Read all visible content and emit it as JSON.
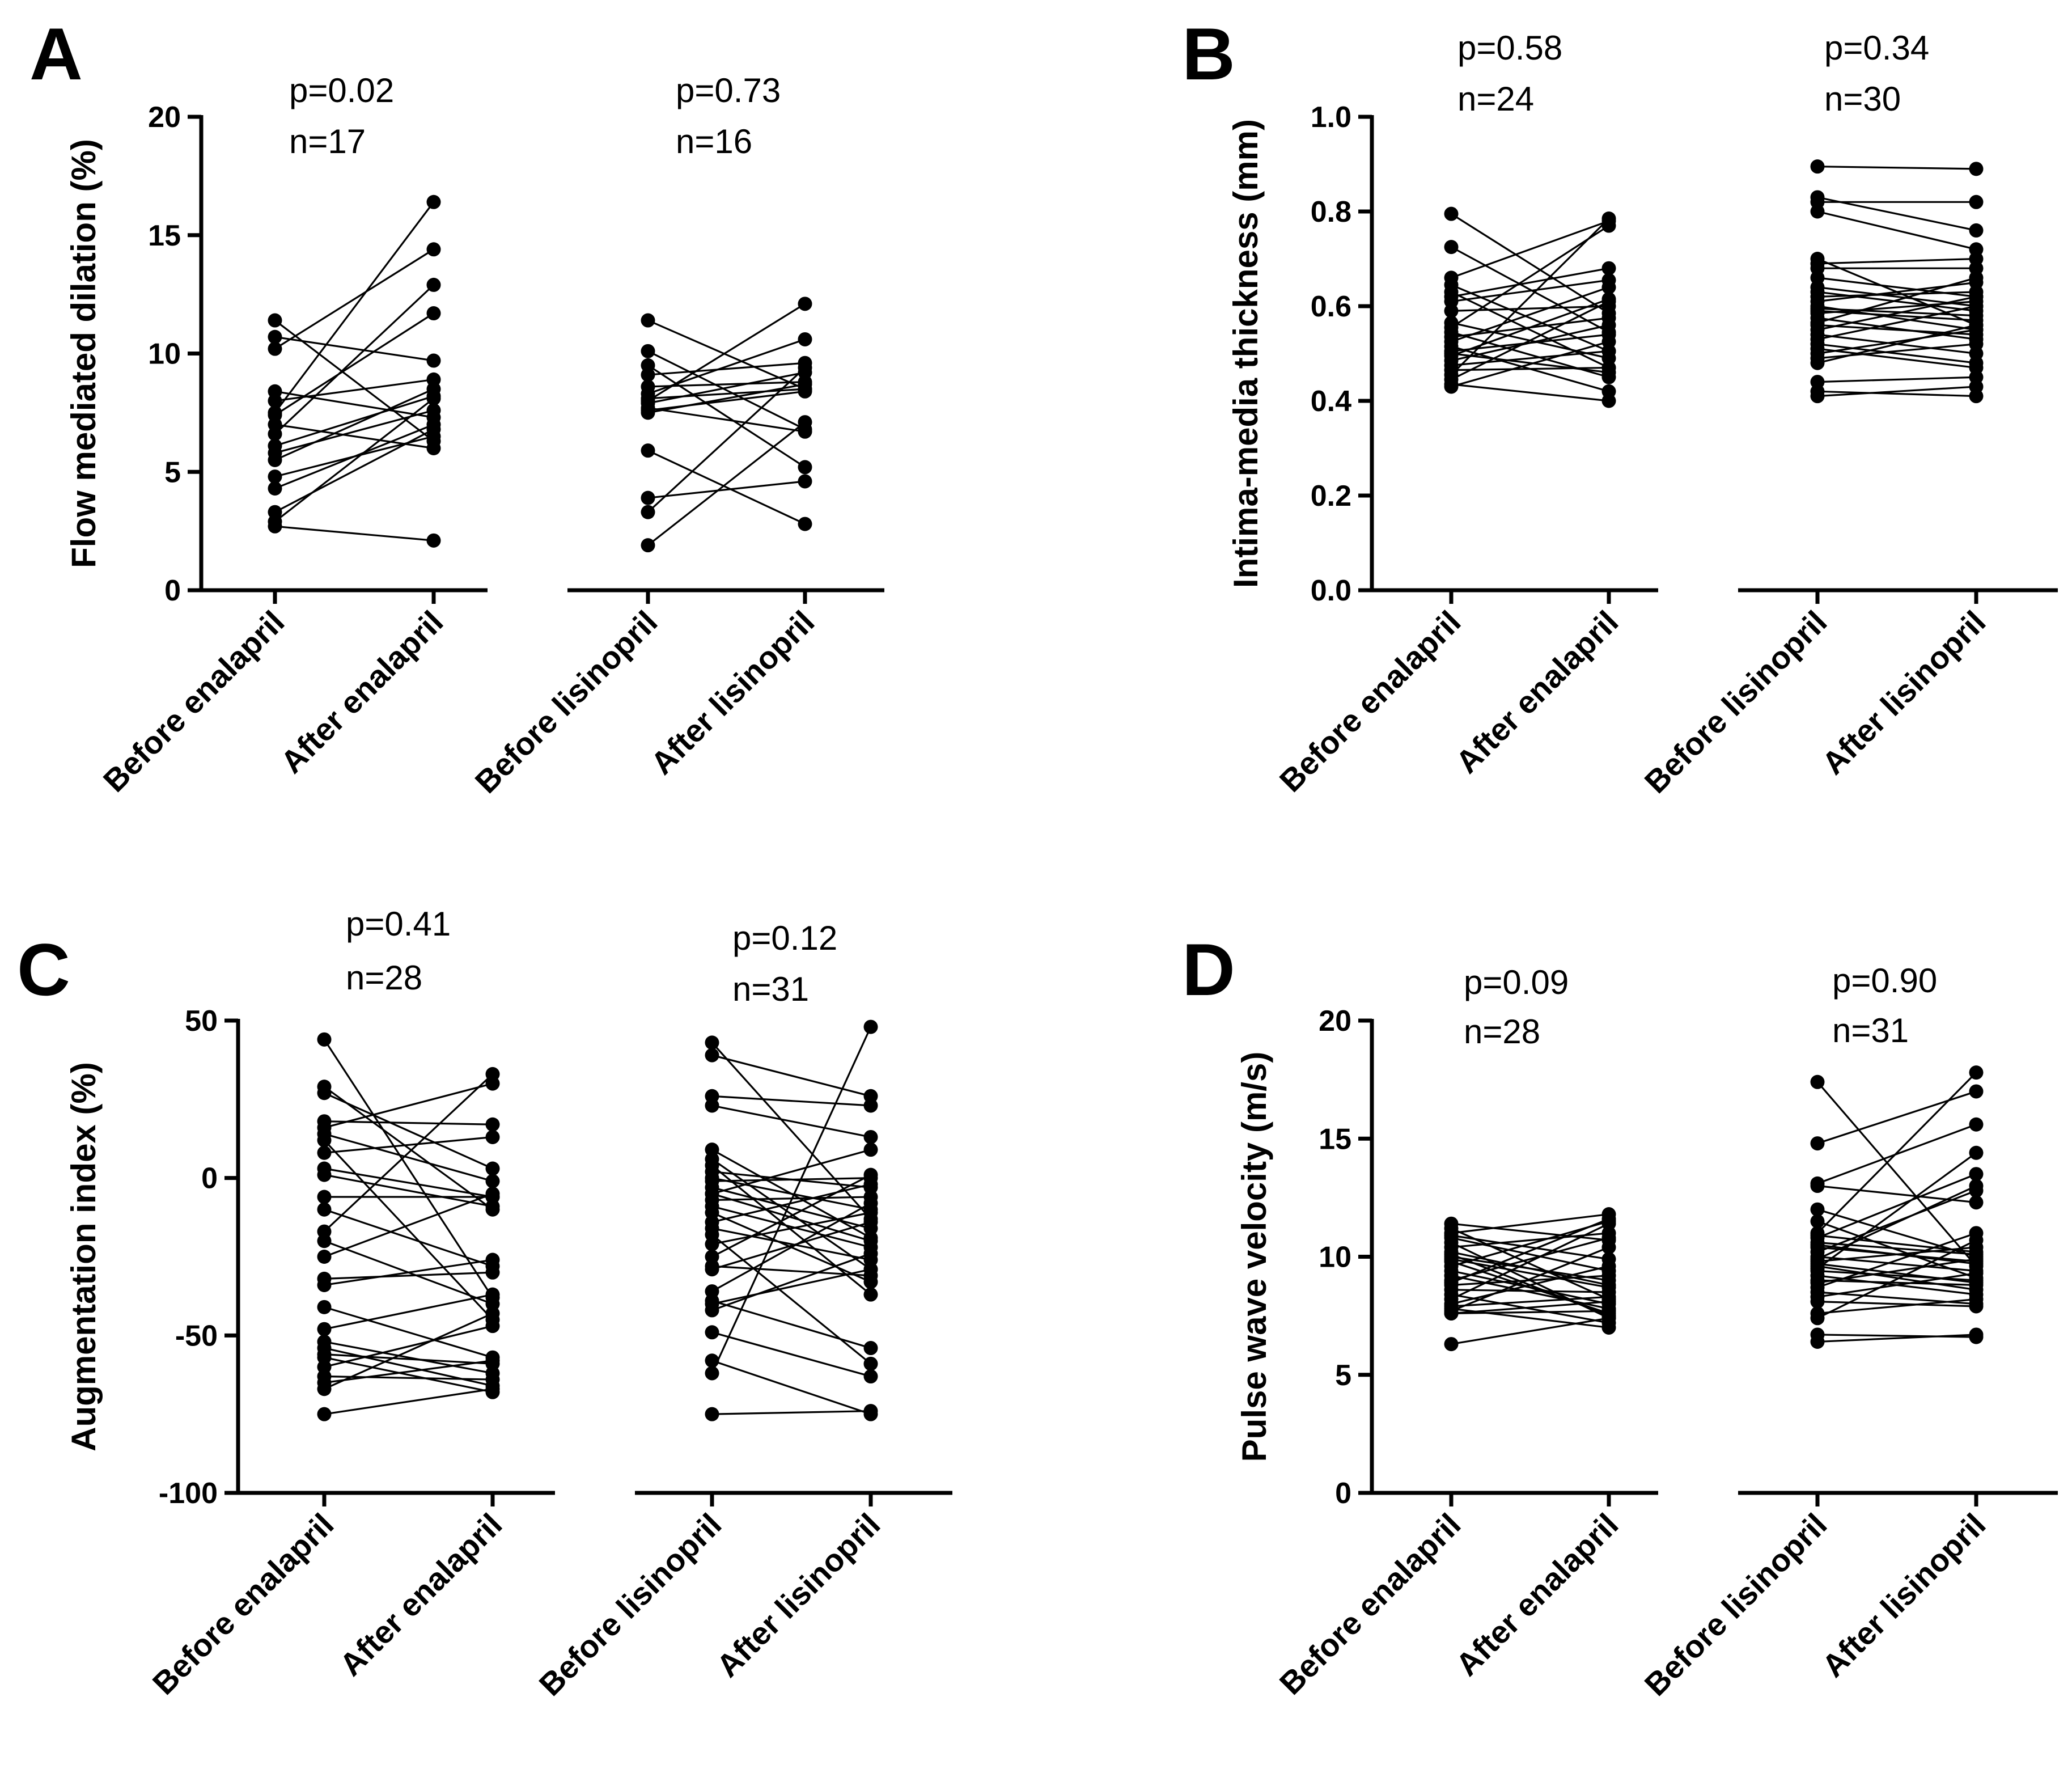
{
  "chart_data": [
    {
      "panel": "A",
      "type": "scatter",
      "ylabel": "Flow mediated dilation (%)",
      "ylim": [
        0,
        20
      ],
      "yticks": [
        "0",
        "5",
        "10",
        "15",
        "20"
      ],
      "categories": [
        "Before enalapril",
        "After enalapril",
        "Before lisinopril",
        "After lisinopril"
      ],
      "groups": [
        {
          "drug": "enalapril",
          "p_text": "p=0.02",
          "n_text": "n=17",
          "pairs": [
            [
              11.4,
              6.3
            ],
            [
              10.7,
              9.7
            ],
            [
              10.2,
              14.4
            ],
            [
              8.4,
              7.3
            ],
            [
              8.0,
              8.9
            ],
            [
              7.5,
              16.4
            ],
            [
              7.4,
              11.7
            ],
            [
              7.0,
              6.0
            ],
            [
              6.6,
              12.9
            ],
            [
              6.1,
              8.2
            ],
            [
              5.8,
              7.6
            ],
            [
              5.5,
              8.5
            ],
            [
              4.8,
              6.5
            ],
            [
              4.3,
              7.0
            ],
            [
              3.3,
              6.8
            ],
            [
              2.9,
              8.1
            ],
            [
              2.7,
              2.1
            ]
          ]
        },
        {
          "drug": "lisinopril",
          "p_text": "p=0.73",
          "n_text": "n=16",
          "pairs": [
            [
              11.4,
              8.5
            ],
            [
              10.1,
              6.8
            ],
            [
              9.5,
              5.2
            ],
            [
              9.1,
              9.6
            ],
            [
              8.6,
              8.8
            ],
            [
              8.3,
              10.6
            ],
            [
              8.1,
              8.5
            ],
            [
              8.0,
              12.1
            ],
            [
              7.9,
              9.2
            ],
            [
              7.7,
              6.7
            ],
            [
              7.5,
              8.7
            ],
            [
              5.9,
              2.8
            ],
            [
              3.9,
              4.6
            ],
            [
              3.3,
              9.4
            ],
            [
              1.9,
              7.1
            ],
            [
              7.6,
              8.4
            ]
          ]
        }
      ]
    },
    {
      "panel": "B",
      "type": "scatter",
      "ylabel": "Intima-media thickness (mm)",
      "ylim": [
        0,
        1.0
      ],
      "yticks": [
        "0.0",
        "0.2",
        "0.4",
        "0.6",
        "0.8",
        "1.0"
      ],
      "categories": [
        "Before enalapril",
        "After enalapril",
        "Before lisinopril",
        "After lisinopril"
      ],
      "groups": [
        {
          "drug": "enalapril",
          "p_text": "p=0.58",
          "n_text": "n=24",
          "pairs": [
            [
              0.795,
              0.585
            ],
            [
              0.725,
              0.545
            ],
            [
              0.66,
              0.78
            ],
            [
              0.645,
              0.505
            ],
            [
              0.63,
              0.47
            ],
            [
              0.62,
              0.68
            ],
            [
              0.61,
              0.655
            ],
            [
              0.59,
              0.6
            ],
            [
              0.565,
              0.49
            ],
            [
              0.555,
              0.77
            ],
            [
              0.545,
              0.45
            ],
            [
              0.535,
              0.575
            ],
            [
              0.525,
              0.64
            ],
            [
              0.515,
              0.42
            ],
            [
              0.505,
              0.54
            ],
            [
              0.495,
              0.615
            ],
            [
              0.485,
              0.56
            ],
            [
              0.475,
              0.505
            ],
            [
              0.465,
              0.47
            ],
            [
              0.455,
              0.785
            ],
            [
              0.445,
              0.61
            ],
            [
              0.435,
              0.4
            ],
            [
              0.43,
              0.525
            ],
            [
              0.5,
              0.46
            ]
          ]
        },
        {
          "drug": "lisinopril",
          "p_text": "p=0.34",
          "n_text": "n=30",
          "pairs": [
            [
              0.895,
              0.89
            ],
            [
              0.83,
              0.76
            ],
            [
              0.82,
              0.82
            ],
            [
              0.8,
              0.72
            ],
            [
              0.7,
              0.56
            ],
            [
              0.69,
              0.7
            ],
            [
              0.68,
              0.68
            ],
            [
              0.66,
              0.62
            ],
            [
              0.64,
              0.6
            ],
            [
              0.63,
              0.59
            ],
            [
              0.62,
              0.63
            ],
            [
              0.61,
              0.65
            ],
            [
              0.6,
              0.55
            ],
            [
              0.595,
              0.58
            ],
            [
              0.59,
              0.57
            ],
            [
              0.585,
              0.61
            ],
            [
              0.575,
              0.53
            ],
            [
              0.565,
              0.66
            ],
            [
              0.56,
              0.54
            ],
            [
              0.55,
              0.62
            ],
            [
              0.54,
              0.5
            ],
            [
              0.53,
              0.6
            ],
            [
              0.52,
              0.48
            ],
            [
              0.51,
              0.47
            ],
            [
              0.5,
              0.55
            ],
            [
              0.49,
              0.52
            ],
            [
              0.48,
              0.56
            ],
            [
              0.44,
              0.45
            ],
            [
              0.42,
              0.41
            ],
            [
              0.41,
              0.43
            ]
          ]
        }
      ]
    },
    {
      "panel": "C",
      "type": "scatter",
      "ylabel": "Augmentation index (%)",
      "ylim": [
        -100,
        50
      ],
      "yticks": [
        "-100",
        "-50",
        "0",
        "50"
      ],
      "categories": [
        "Before enalapril",
        "After enalapril",
        "Before lisinopril",
        "After lisinopril"
      ],
      "groups": [
        {
          "drug": "enalapril",
          "p_text": "p=0.41",
          "n_text": "n=28",
          "pairs": [
            [
              44,
              -38
            ],
            [
              29,
              -10
            ],
            [
              27,
              3
            ],
            [
              18,
              17
            ],
            [
              16,
              30
            ],
            [
              14,
              -1
            ],
            [
              12,
              -45
            ],
            [
              3,
              -6
            ],
            [
              1,
              -9
            ],
            [
              -6,
              -6
            ],
            [
              -10,
              -28
            ],
            [
              -17,
              33
            ],
            [
              -20,
              -40
            ],
            [
              -32,
              -30
            ],
            [
              -34,
              -26
            ],
            [
              -41,
              -57
            ],
            [
              -48,
              -37
            ],
            [
              -52,
              -62
            ],
            [
              -54,
              -66
            ],
            [
              -56,
              -59
            ],
            [
              -57,
              -68
            ],
            [
              -60,
              -47
            ],
            [
              -63,
              -64
            ],
            [
              -65,
              -58
            ],
            [
              -67,
              -43
            ],
            [
              -75,
              -67
            ],
            [
              -25,
              -5
            ],
            [
              8,
              13
            ]
          ]
        },
        {
          "drug": "lisinopril",
          "p_text": "p=0.12",
          "n_text": "n=31",
          "pairs": [
            [
              43,
              -13
            ],
            [
              39,
              26
            ],
            [
              26,
              23
            ],
            [
              23,
              13
            ],
            [
              9,
              -19
            ],
            [
              6,
              -29
            ],
            [
              4,
              -37
            ],
            [
              2,
              -3
            ],
            [
              -1,
              0
            ],
            [
              -3,
              -16
            ],
            [
              -5,
              9
            ],
            [
              -7,
              -6
            ],
            [
              -9,
              -22
            ],
            [
              -11,
              -33
            ],
            [
              -14,
              -2
            ],
            [
              -16,
              -26
            ],
            [
              -21,
              -11
            ],
            [
              -25,
              1
            ],
            [
              -28,
              -31
            ],
            [
              -29,
              -14
            ],
            [
              -36,
              -8
            ],
            [
              -39,
              -54
            ],
            [
              -40,
              -29
            ],
            [
              -42,
              -24
            ],
            [
              -49,
              -63
            ],
            [
              -58,
              -75
            ],
            [
              -62,
              48
            ],
            [
              -75,
              -74
            ],
            [
              -5,
              -20
            ],
            [
              0,
              -10
            ],
            [
              -18,
              -59
            ]
          ]
        }
      ]
    },
    {
      "panel": "D",
      "type": "scatter",
      "ylabel": "Pulse wave velocity (m/s)",
      "ylim": [
        0,
        20
      ],
      "yticks": [
        "0",
        "5",
        "10",
        "15",
        "20"
      ],
      "categories": [
        "Before enalapril",
        "After enalapril",
        "Before lisinopril",
        "After lisinopril"
      ],
      "groups": [
        {
          "drug": "enalapril",
          "p_text": "p=0.09",
          "n_text": "n=28",
          "pairs": [
            [
              11.4,
              10.7
            ],
            [
              11.2,
              8.2
            ],
            [
              11.0,
              11.8
            ],
            [
              10.8,
              9.4
            ],
            [
              10.6,
              7.4
            ],
            [
              10.4,
              11.0
            ],
            [
              10.2,
              8.8
            ],
            [
              10.0,
              9.0
            ],
            [
              9.8,
              7.6
            ],
            [
              9.6,
              11.5
            ],
            [
              9.4,
              8.0
            ],
            [
              9.2,
              7.8
            ],
            [
              9.0,
              10.8
            ],
            [
              8.8,
              9.2
            ],
            [
              8.6,
              8.5
            ],
            [
              8.4,
              7.2
            ],
            [
              8.2,
              11.4
            ],
            [
              8.0,
              9.6
            ],
            [
              7.9,
              8.3
            ],
            [
              7.8,
              7.0
            ],
            [
              7.7,
              10.4
            ],
            [
              7.6,
              8.1
            ],
            [
              7.6,
              7.7
            ],
            [
              6.3,
              7.4
            ],
            [
              10.9,
              9.9
            ],
            [
              9.9,
              8.7
            ],
            [
              8.9,
              11.6
            ],
            [
              10.1,
              7.5
            ]
          ]
        },
        {
          "drug": "lisinopril",
          "p_text": "p=0.90",
          "n_text": "n=31",
          "pairs": [
            [
              17.4,
              9.6
            ],
            [
              14.8,
              17.0
            ],
            [
              13.1,
              15.6
            ],
            [
              13.0,
              12.3
            ],
            [
              12.0,
              10.0
            ],
            [
              11.5,
              9.1
            ],
            [
              11.0,
              17.8
            ],
            [
              10.8,
              13.5
            ],
            [
              10.6,
              10.1
            ],
            [
              10.4,
              9.8
            ],
            [
              10.2,
              12.8
            ],
            [
              10.0,
              9.4
            ],
            [
              9.9,
              13.0
            ],
            [
              9.8,
              10.4
            ],
            [
              9.6,
              8.6
            ],
            [
              9.5,
              14.4
            ],
            [
              9.4,
              9.0
            ],
            [
              9.2,
              8.4
            ],
            [
              8.9,
              9.9
            ],
            [
              8.7,
              11.0
            ],
            [
              8.5,
              8.0
            ],
            [
              8.3,
              9.3
            ],
            [
              7.6,
              8.2
            ],
            [
              7.4,
              10.7
            ],
            [
              6.7,
              6.6
            ],
            [
              6.4,
              6.7
            ],
            [
              10.5,
              9.7
            ],
            [
              9.7,
              8.9
            ],
            [
              10.9,
              10.2
            ],
            [
              9.0,
              8.8
            ],
            [
              8.1,
              7.9
            ]
          ]
        }
      ]
    }
  ]
}
